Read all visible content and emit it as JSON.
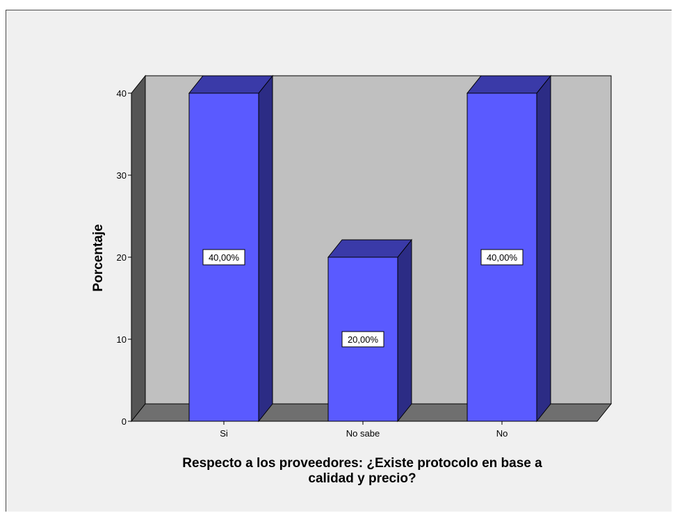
{
  "chart_data": {
    "type": "bar",
    "categories": [
      "Si",
      "No sabe",
      "No"
    ],
    "values": [
      40,
      20,
      40
    ],
    "data_labels": [
      "40,00%",
      "20,00%",
      "40,00%"
    ],
    "title": "",
    "ylabel": "Porcentaje",
    "xlabel_lines": [
      "Respecto a los proveedores: ¿Existe protocolo en base a",
      "calidad y precio?"
    ],
    "yticks": [
      0,
      10,
      20,
      30,
      40
    ],
    "ylim": [
      0,
      40
    ],
    "grid": false,
    "style": "3d",
    "colors": {
      "bar_front": "#5a5aff",
      "bar_top": "#3a3aa8",
      "bar_side": "#2c2c85",
      "back_wall": "#c0c0c0",
      "side_wall": "#555555",
      "floor": "#6f6f6f",
      "background": "#f0f0f0"
    }
  }
}
